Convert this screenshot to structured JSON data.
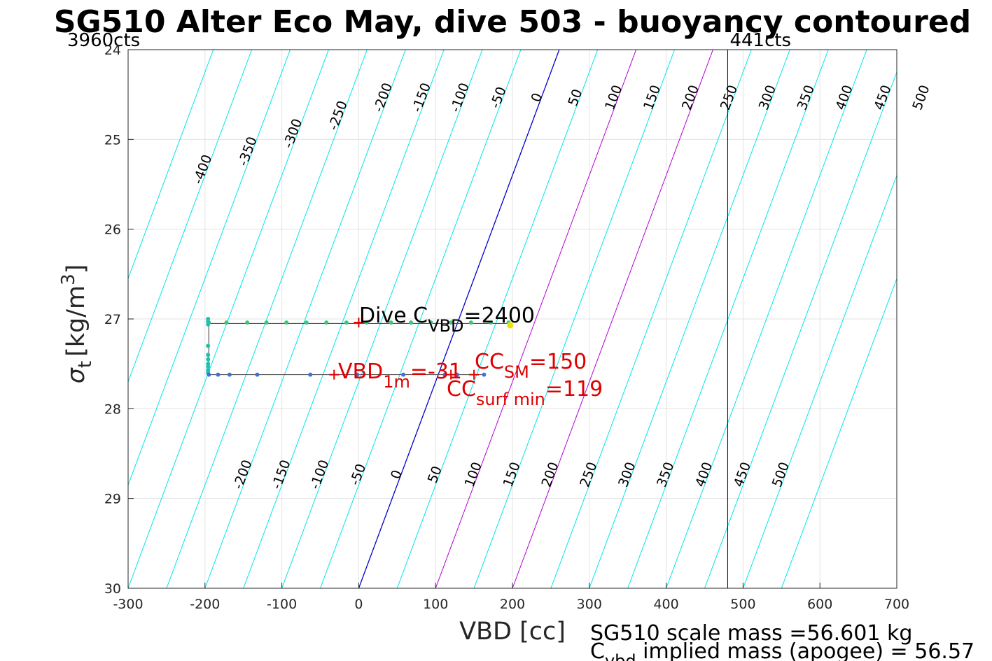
{
  "chart_data": {
    "type": "line",
    "title": "SG510 Alter Eco May, dive 503 - buoyancy contoured",
    "xlabel": "VBD [cc]",
    "ylabel_main": "σ",
    "ylabel_sub": "t",
    "ylabel_units": "[kg/m",
    "ylabel_sup": "3",
    "ylabel_close": "]",
    "xlim": [
      -300,
      700
    ],
    "ylim": [
      24,
      30
    ],
    "y_reversed": true,
    "grid": true,
    "x_ticks": [
      -300,
      -200,
      -100,
      0,
      100,
      200,
      300,
      400,
      500,
      600,
      700
    ],
    "x_tick_labels": [
      "-300",
      "-200",
      "-100",
      "0",
      "100",
      "200",
      "300",
      "400",
      "500",
      "600",
      "700"
    ],
    "y_ticks": [
      24,
      25,
      26,
      27,
      28,
      29,
      30
    ],
    "y_tick_labels": [
      "24",
      "25",
      "26",
      "27",
      "28",
      "29",
      "30"
    ],
    "contour_levels": [
      -450,
      -400,
      -350,
      -300,
      -250,
      -200,
      -150,
      -100,
      -50,
      0,
      50,
      100,
      150,
      200,
      250,
      300,
      350,
      400,
      450,
      500,
      550
    ],
    "contour_slope_sigma_per_cc": 0.023,
    "contour_colors": {
      "default": "#00e5e5",
      "zero": "#0000cc",
      "sm": "#b300d9"
    },
    "sm_levels": [
      100,
      200
    ],
    "contour_labels_top": [
      "-400",
      "-350",
      "-300",
      "-250",
      "-200",
      "-150",
      "-100",
      "-50",
      "0",
      "50",
      "100",
      "150",
      "200",
      "250",
      "300",
      "350",
      "400",
      "450",
      "500"
    ],
    "contour_labels_top_values": [
      -400,
      -350,
      -300,
      -250,
      -200,
      -150,
      -100,
      -50,
      0,
      50,
      100,
      150,
      200,
      250,
      300,
      350,
      400,
      450,
      500
    ],
    "contour_labels_bottom": [
      "-200",
      "-150",
      "-100",
      "-50",
      "0",
      "50",
      "100",
      "150",
      "200",
      "250",
      "300",
      "350",
      "400",
      "450",
      "500"
    ],
    "contour_labels_bottom_values": [
      -200,
      -150,
      -100,
      -50,
      0,
      50,
      100,
      150,
      200,
      250,
      300,
      350,
      400,
      450,
      500
    ],
    "vlines": [
      {
        "x": 480,
        "label": "441cts"
      },
      {
        "x": -300,
        "label": "3960cts"
      }
    ],
    "profile_outline": {
      "x": [
        -195,
        195,
        195,
        -195,
        -195,
        160
      ],
      "y": [
        27.05,
        27.05,
        27.05,
        27.05,
        27.62,
        27.62
      ]
    },
    "series": [
      {
        "role": "dive_top",
        "color": "#3cc878",
        "x": [
          -195,
          -172,
          -145,
          -120,
          -94,
          -68,
          -42,
          -16,
          10,
          42,
          68,
          94,
          120,
          146,
          172,
          195
        ],
        "y": [
          27.04,
          27.04,
          27.04,
          27.04,
          27.04,
          27.04,
          27.04,
          27.04,
          27.04,
          27.04,
          27.04,
          27.04,
          27.04,
          27.04,
          27.04,
          27.04
        ]
      },
      {
        "role": "dive_side",
        "color": "#20c0b0",
        "x": [
          -196,
          -196,
          -196,
          -196,
          -196,
          -196,
          -196,
          -196,
          -196,
          -196
        ],
        "y": [
          27.0,
          27.03,
          27.06,
          27.3,
          27.4,
          27.45,
          27.5,
          27.53,
          27.57,
          27.6
        ]
      },
      {
        "role": "dive_bottom",
        "color": "#4070e0",
        "x": [
          -195,
          -183,
          -168,
          -132,
          -63,
          -2,
          58,
          112,
          128,
          163
        ],
        "y": [
          27.62,
          27.62,
          27.62,
          27.62,
          27.62,
          27.62,
          27.62,
          27.62,
          27.62,
          27.62
        ]
      },
      {
        "role": "apogee",
        "color": "#f0e000",
        "x": [
          197
        ],
        "y": [
          27.07
        ]
      }
    ],
    "markers": [
      {
        "x": 0,
        "y": 27.04,
        "color": "#e00000"
      },
      {
        "x": -32,
        "y": 27.62,
        "color": "#e00000"
      },
      {
        "x": 120,
        "y": 27.62,
        "color": "#e00000"
      },
      {
        "x": 150,
        "y": 27.62,
        "color": "#e00000"
      }
    ],
    "annotations": {
      "dive_c_main": "Dive C",
      "dive_c_sub": "VBD",
      "dive_c_val": "=2400",
      "vbd1m_main": "VBD",
      "vbd1m_sub": "1m",
      "vbd1m_val": "=-31",
      "ccsm_main": "CC",
      "ccsm_sub": "SM",
      "ccsm_val": "=150",
      "ccsurf_main": "CC",
      "ccsurf_sub": "surf min",
      "ccsurf_val": "=119"
    },
    "footer": {
      "scale_mass": "SG510 scale mass =56.601 kg",
      "implied_main": "C",
      "implied_sub": "vbd",
      "implied_rest": " implied mass (apogee) = 56.57"
    }
  }
}
